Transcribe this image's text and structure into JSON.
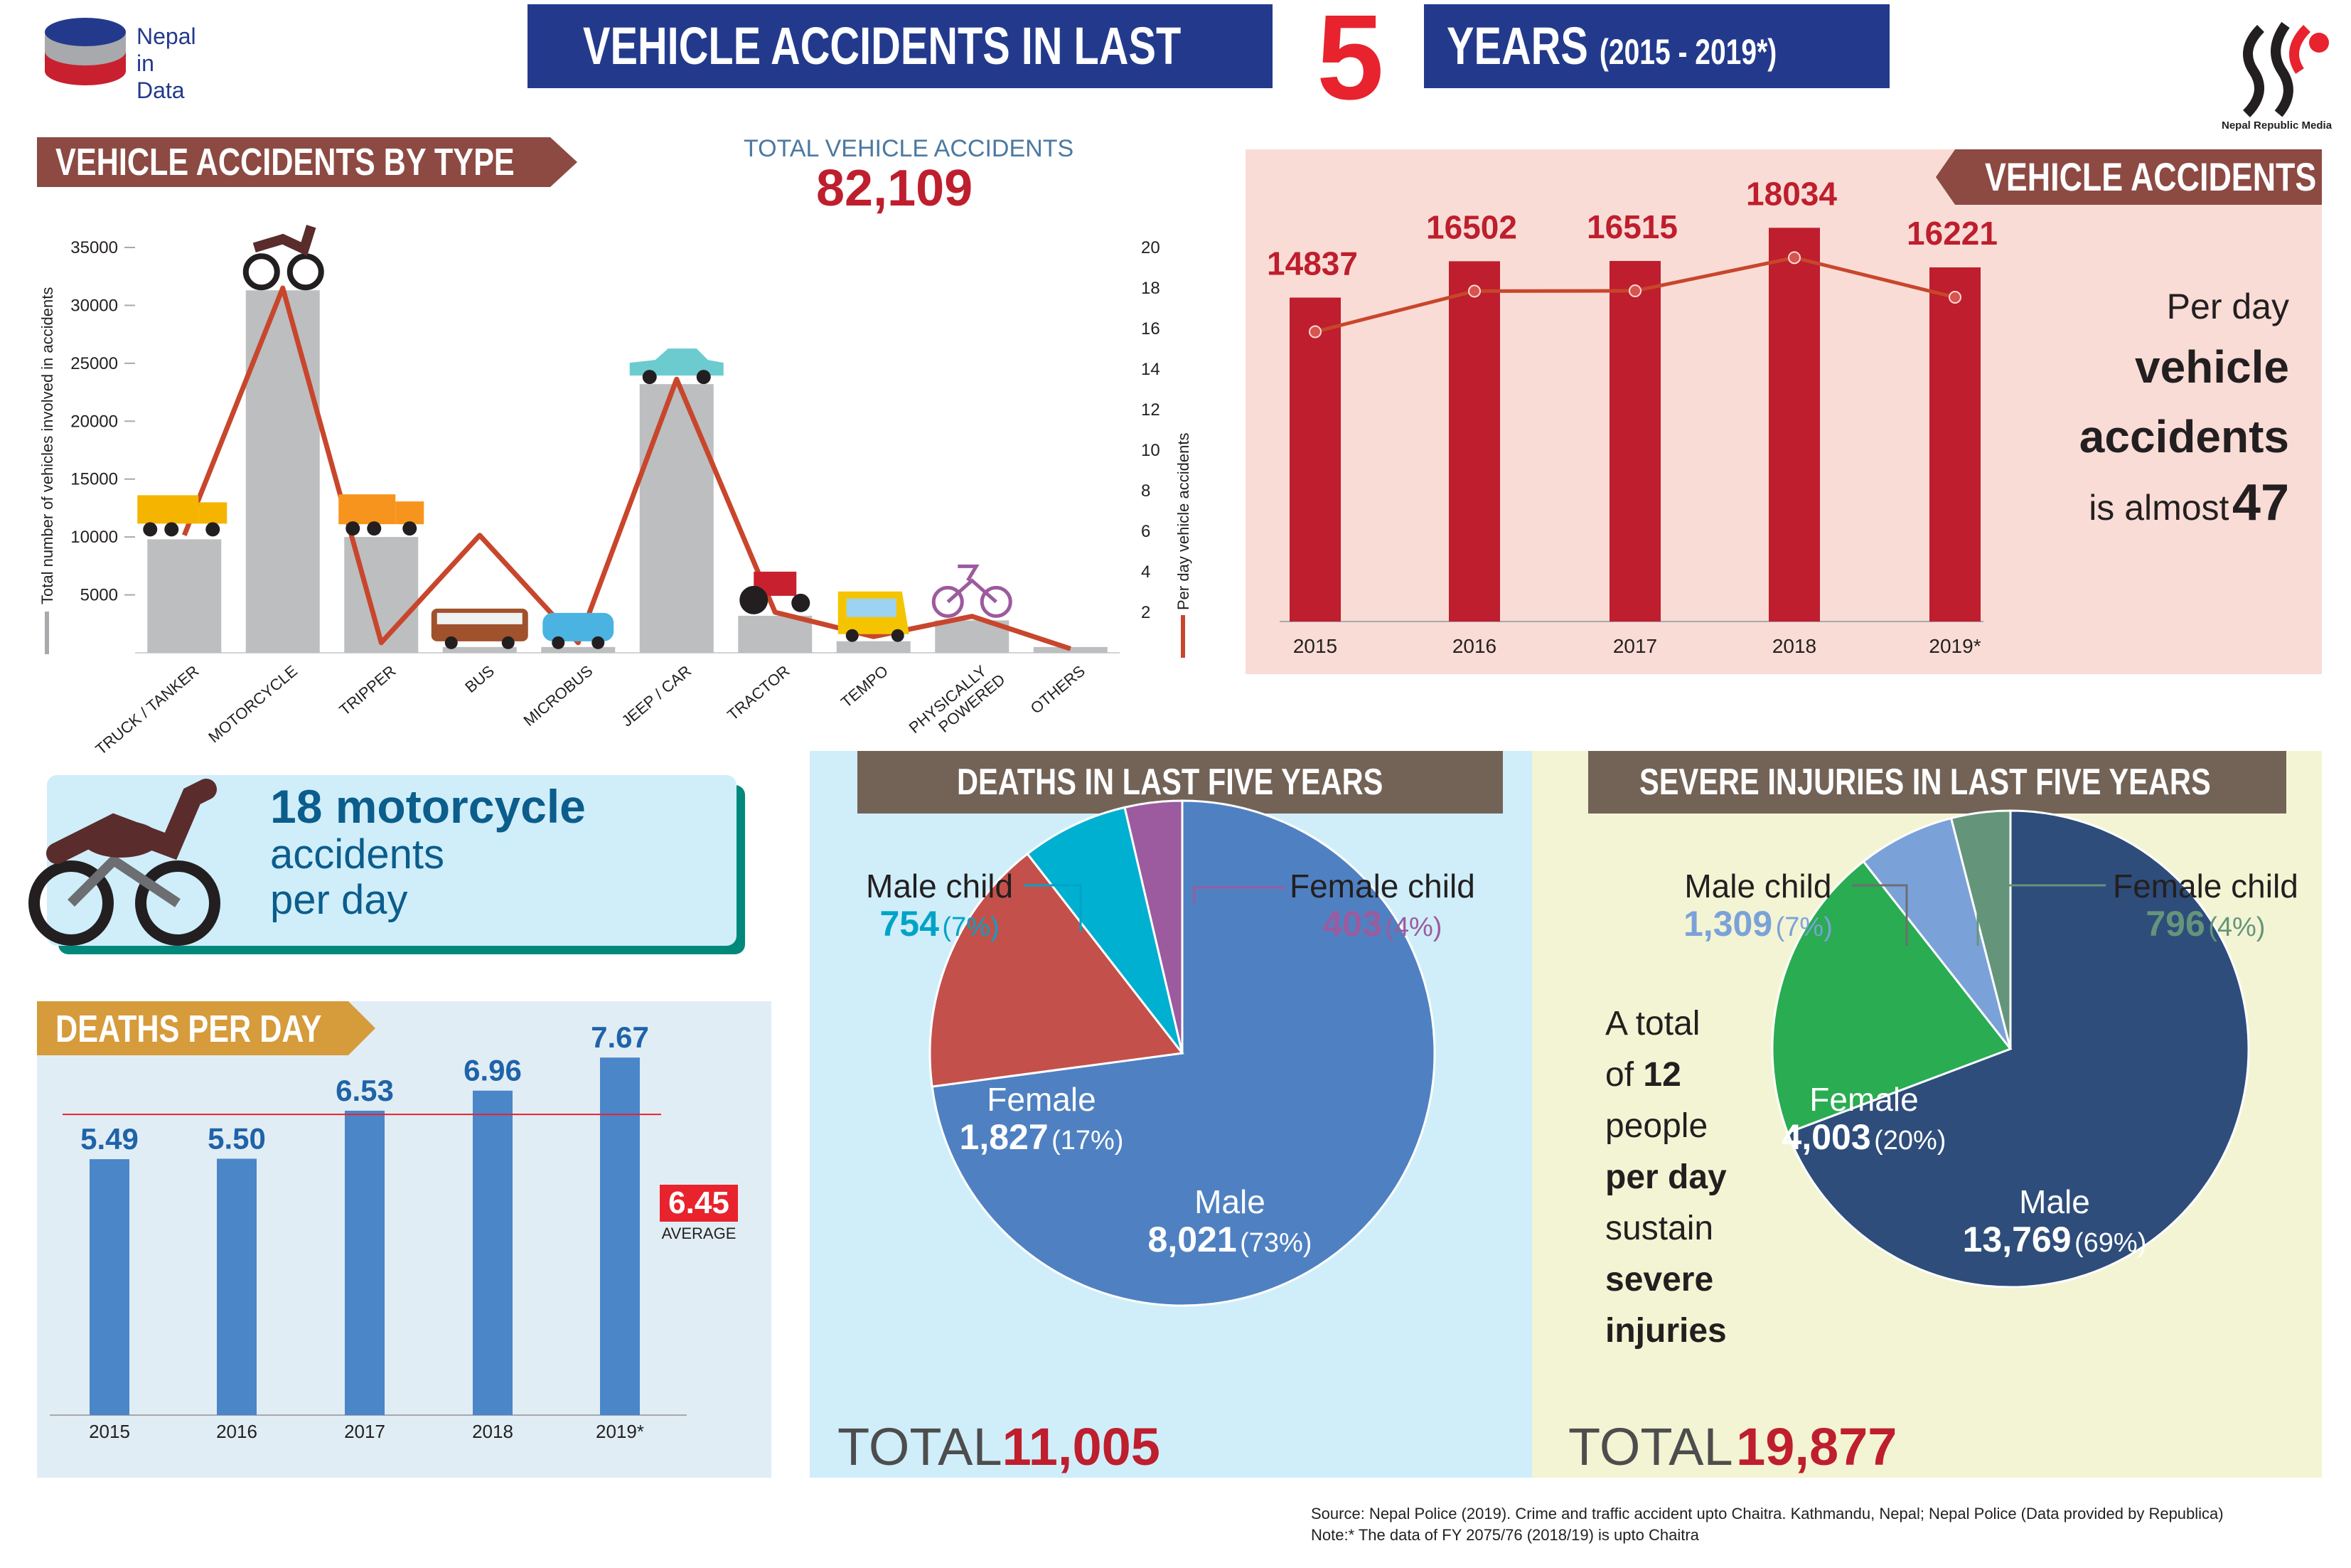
{
  "header": {
    "logo_lines": [
      "Nepal",
      "in",
      "Data"
    ],
    "title_left": "VEHICLE ACCIDENTS IN LAST",
    "title_number": "5",
    "title_right": "YEARS",
    "title_range": "(2015 - 2019*)",
    "publisher": "Nepal Republic Media"
  },
  "colors": {
    "navy": "#233a8c",
    "crimson": "#be1e2d",
    "brown_banner": "#8c4a43",
    "grey_bar": "#bcbec0",
    "orange_line": "#c8462c",
    "teal": "#008080",
    "blue_bar": "#4a86c8",
    "pink_bg": "#f9dcd6",
    "light_blue_bg": "#cfeefa",
    "light_yellow_bg": "#f3f4d3",
    "gold_banner": "#d69b3a",
    "grey_banner": "#736357"
  },
  "by_type": {
    "banner": "VEHICLE ACCIDENTS BY TYPE",
    "total_label": "TOTAL VEHICLE ACCIDENTS",
    "total_value": "82,109",
    "left_axis_label": "Total number of vehicles involved in accidents",
    "right_axis_label": "Per day vehicle accidents"
  },
  "yearly": {
    "banner": "VEHICLE ACCIDENTS",
    "per_day_line1": "Per day",
    "per_day_line2": "vehicle",
    "per_day_line3": "accidents",
    "per_day_line4_prefix": "is almost",
    "per_day_value": "47"
  },
  "motorcycle_callout": {
    "line1": "18 motorcycle",
    "line2": "accidents",
    "line3": "per day"
  },
  "deaths_per_day": {
    "banner": "DEATHS PER DAY",
    "average_value": "6.45",
    "average_label": "AVERAGE"
  },
  "deaths": {
    "banner": "DEATHS IN LAST FIVE YEARS",
    "labels": {
      "male_child": {
        "name": "Male child",
        "value": "754",
        "pct": "(7%)"
      },
      "female_child": {
        "name": "Female child",
        "value": "403",
        "pct": "(4%)"
      },
      "female": {
        "name": "Female",
        "value": "1,827",
        "pct": "(17%)"
      },
      "male": {
        "name": "Male",
        "value": "8,021",
        "pct": "(73%)"
      }
    },
    "total_label": "TOTAL",
    "total_value": "11,005"
  },
  "injuries": {
    "banner": "SEVERE INJURIES IN LAST FIVE YEARS",
    "labels": {
      "male_child": {
        "name": "Male child",
        "value": "1,309",
        "pct": "(7%)"
      },
      "female_child": {
        "name": "Female child",
        "value": "796",
        "pct": "(4%)"
      },
      "female": {
        "name": "Female",
        "value": "4,003",
        "pct": "(20%)"
      },
      "male": {
        "name": "Male",
        "value": "13,769",
        "pct": "(69%)"
      }
    },
    "side_text": {
      "l1": "A total",
      "l2a": "of",
      "l2b": "12",
      "l3": "people",
      "l4": "per day",
      "l5": "sustain",
      "l6": "severe",
      "l7": "injuries"
    },
    "total_label": "TOTAL",
    "total_value": "19,877"
  },
  "footer": {
    "source": "Source: Nepal Police (2019). Crime and traffic accident upto Chaitra. Kathmandu, Nepal; Nepal Police (Data provided by Republica)",
    "note": "Note:* The data of FY 2075/76 (2018/19) is upto Chaitra"
  },
  "chart_data": [
    {
      "type": "bar",
      "id": "by_type",
      "title": "VEHICLE ACCIDENTS BY TYPE",
      "categories": [
        "TRUCK / TANKER",
        "MOTORCYCLE",
        "TRIPPER",
        "BUS",
        "MICROBUS",
        "JEEP / CAR",
        "TRACTOR",
        "TEMPO",
        "PHYSICALLY POWERED",
        "OTHERS"
      ],
      "series": [
        {
          "name": "Total number of vehicles involved in accidents",
          "type": "bar",
          "axis": "left",
          "values": [
            9800,
            31300,
            10000,
            500,
            500,
            23200,
            3200,
            1000,
            2800,
            500
          ]
        },
        {
          "name": "Per day vehicle accidents",
          "type": "line",
          "axis": "right",
          "values": [
            5.8,
            18,
            0.5,
            5.8,
            0.5,
            13.5,
            2,
            0.8,
            1.8,
            0.2
          ]
        }
      ],
      "ylim_left": [
        0,
        35000
      ],
      "yticks_left": [
        5000,
        10000,
        15000,
        20000,
        25000,
        30000,
        35000
      ],
      "ylim_right": [
        0,
        20
      ],
      "yticks_right": [
        2,
        4,
        6,
        8,
        10,
        12,
        14,
        16,
        18,
        20
      ]
    },
    {
      "type": "bar",
      "id": "yearly",
      "title": "VEHICLE ACCIDENTS",
      "categories": [
        "2015",
        "2016",
        "2017",
        "2018",
        "2019*"
      ],
      "values": [
        14837,
        16502,
        16515,
        18034,
        16221
      ],
      "value_labels": [
        "14837",
        "16502",
        "16515",
        "18034",
        "16221"
      ],
      "ylim": [
        0,
        20000
      ]
    },
    {
      "type": "bar",
      "id": "deaths_per_day",
      "title": "DEATHS PER DAY",
      "categories": [
        "2015",
        "2016",
        "2017",
        "2018",
        "2019*"
      ],
      "values": [
        5.49,
        5.5,
        6.53,
        6.96,
        7.67
      ],
      "value_labels": [
        "5.49",
        "5.50",
        "6.53",
        "6.96",
        "7.67"
      ],
      "average": 6.45,
      "ylim": [
        0,
        9
      ]
    },
    {
      "type": "pie",
      "id": "deaths",
      "title": "DEATHS IN LAST FIVE YEARS",
      "labels": [
        "Male",
        "Female",
        "Male child",
        "Female child"
      ],
      "values": [
        8021,
        1827,
        754,
        403
      ],
      "colors": [
        "#4f81c2",
        "#c4504b",
        "#00b0d0",
        "#9c5b9e"
      ]
    },
    {
      "type": "pie",
      "id": "injuries",
      "title": "SEVERE INJURIES IN LAST FIVE YEARS",
      "labels": [
        "Male",
        "Female",
        "Male child",
        "Female child"
      ],
      "values": [
        13769,
        4003,
        1309,
        796
      ],
      "colors": [
        "#2e4d7b",
        "#2aac52",
        "#7ba2d8",
        "#64957a"
      ]
    }
  ]
}
